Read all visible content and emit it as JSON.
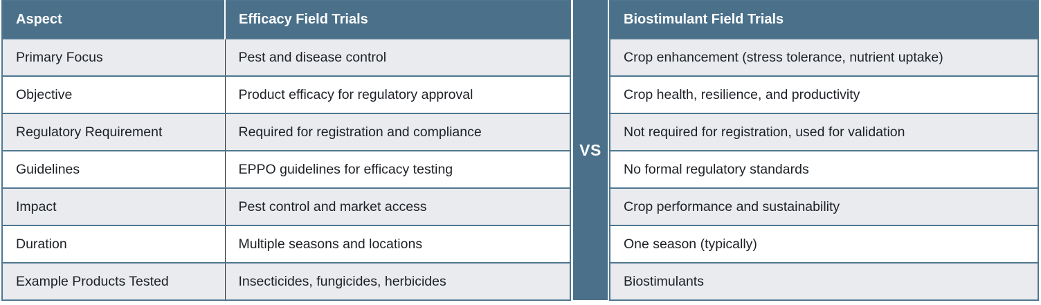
{
  "comparison_table": {
    "vs_label": "VS",
    "headers": {
      "aspect": "Aspect",
      "efficacy": "Efficacy Field Trials",
      "biostimulant": "Biostimulant Field Trials"
    },
    "rows": [
      {
        "aspect": "Primary Focus",
        "efficacy": "Pest and disease control",
        "biostimulant": "Crop enhancement (stress tolerance, nutrient uptake)"
      },
      {
        "aspect": "Objective",
        "efficacy": "Product efficacy for regulatory approval",
        "biostimulant": "Crop health, resilience, and productivity"
      },
      {
        "aspect": "Regulatory Requirement",
        "efficacy": "Required for registration and compliance",
        "biostimulant": "Not required for registration, used for validation"
      },
      {
        "aspect": "Guidelines",
        "efficacy": "EPPO guidelines for efficacy testing",
        "biostimulant": "No formal regulatory standards"
      },
      {
        "aspect": "Impact",
        "efficacy": "Pest control and market access",
        "biostimulant": "Crop performance and sustainability"
      },
      {
        "aspect": "Duration",
        "efficacy": "Multiple seasons and locations",
        "biostimulant": "One season (typically)"
      },
      {
        "aspect": "Example Products Tested",
        "efficacy": "Insecticides, fungicides, herbicides",
        "biostimulant": "Biostimulants"
      }
    ],
    "colors": {
      "header_bg": "#4a708a",
      "band_bg": "#4a708a",
      "row_alt_bg": "#e9ebee",
      "row_bg": "#ffffff",
      "border": "#4f7690",
      "column_divider": "#2c3237",
      "header_text": "#ffffff",
      "body_text": "#1d2126"
    }
  }
}
